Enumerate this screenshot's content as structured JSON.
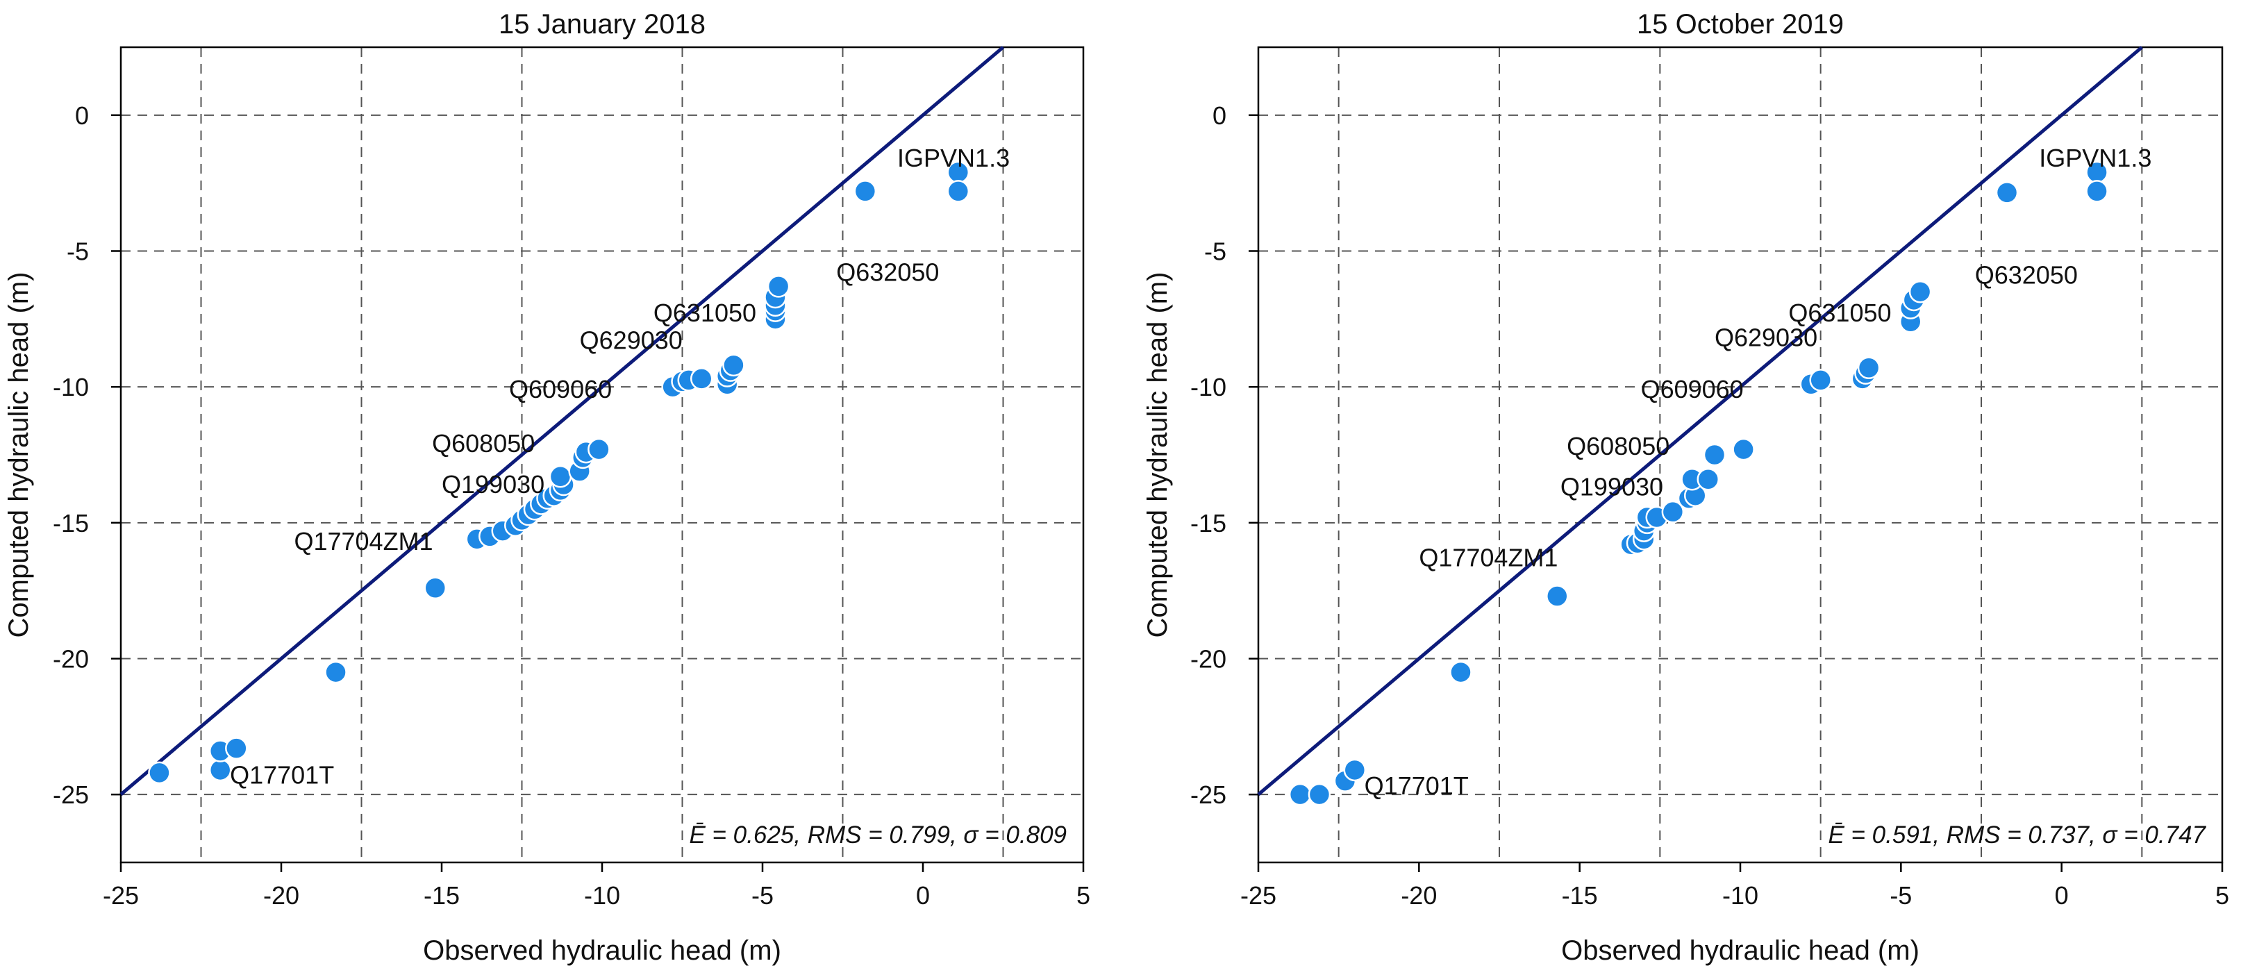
{
  "colors": {
    "point": "#1e88e5",
    "line": "#0d1b7a",
    "grid": "#555555",
    "axis": "#000000"
  },
  "chart_data": [
    {
      "type": "scatter",
      "title": "15 January 2018",
      "xlabel": "Observed hydraulic head (m)",
      "ylabel": "Computed hydraulic head (m)",
      "xlim": [
        -25,
        5
      ],
      "ylim": [
        -27.5,
        2.5
      ],
      "xticks": [
        -25,
        -20,
        -15,
        -10,
        -5,
        0,
        5
      ],
      "yticks": [
        0,
        -5,
        -10,
        -15,
        -20,
        -25
      ],
      "xgrid": [
        -22.5,
        -17.5,
        -12.5,
        -7.5,
        -2.5,
        2.5
      ],
      "ygrid": [
        0,
        -5,
        -10,
        -15,
        -20,
        -25
      ],
      "reference_line": "1:1",
      "stats": "Ē = 0.625, RMS = 0.799, σ = 0.809",
      "points": [
        {
          "x": -23.8,
          "y": -24.2
        },
        {
          "x": -21.9,
          "y": -24.1
        },
        {
          "x": -21.9,
          "y": -23.4
        },
        {
          "x": -21.4,
          "y": -23.3
        },
        {
          "x": -18.3,
          "y": -20.5
        },
        {
          "x": -15.2,
          "y": -17.4
        },
        {
          "x": -13.9,
          "y": -15.6
        },
        {
          "x": -13.5,
          "y": -15.5
        },
        {
          "x": -13.1,
          "y": -15.3
        },
        {
          "x": -12.7,
          "y": -15.1
        },
        {
          "x": -12.5,
          "y": -14.9
        },
        {
          "x": -12.3,
          "y": -14.7
        },
        {
          "x": -12.1,
          "y": -14.5
        },
        {
          "x": -11.9,
          "y": -14.3
        },
        {
          "x": -11.7,
          "y": -14.1
        },
        {
          "x": -11.5,
          "y": -14.0
        },
        {
          "x": -11.3,
          "y": -13.8
        },
        {
          "x": -11.2,
          "y": -13.6
        },
        {
          "x": -11.3,
          "y": -13.3
        },
        {
          "x": -10.7,
          "y": -13.1
        },
        {
          "x": -10.6,
          "y": -12.6
        },
        {
          "x": -10.5,
          "y": -12.4
        },
        {
          "x": -10.1,
          "y": -12.3
        },
        {
          "x": -7.8,
          "y": -10.0
        },
        {
          "x": -7.5,
          "y": -9.8
        },
        {
          "x": -7.3,
          "y": -9.75
        },
        {
          "x": -6.9,
          "y": -9.7
        },
        {
          "x": -6.1,
          "y": -9.9
        },
        {
          "x": -6.1,
          "y": -9.6
        },
        {
          "x": -6.0,
          "y": -9.4
        },
        {
          "x": -5.9,
          "y": -9.2
        },
        {
          "x": -4.6,
          "y": -7.5
        },
        {
          "x": -4.6,
          "y": -7.2
        },
        {
          "x": -4.6,
          "y": -7.0
        },
        {
          "x": -4.6,
          "y": -6.7
        },
        {
          "x": -4.5,
          "y": -6.3
        },
        {
          "x": -1.8,
          "y": -2.8
        },
        {
          "x": 1.1,
          "y": -2.1
        },
        {
          "x": 1.1,
          "y": -2.8
        }
      ],
      "labels": [
        {
          "text": "IGPVN1.3",
          "x": -0.8,
          "y": -1.9
        },
        {
          "text": "Q632050",
          "x": -2.7,
          "y": -6.1
        },
        {
          "text": "Q631050",
          "x": -8.4,
          "y": -7.6
        },
        {
          "text": "Q629030",
          "x": -10.7,
          "y": -8.6
        },
        {
          "text": "Q609060",
          "x": -12.9,
          "y": -10.4
        },
        {
          "text": "Q608050",
          "x": -15.3,
          "y": -12.4
        },
        {
          "text": "Q199030",
          "x": -15.0,
          "y": -13.9
        },
        {
          "text": "Q17704ZM1",
          "x": -19.6,
          "y": -16.0
        },
        {
          "text": "Q17701T",
          "x": -21.6,
          "y": -24.6
        }
      ]
    },
    {
      "type": "scatter",
      "title": "15 October 2019",
      "xlabel": "Observed hydraulic head (m)",
      "ylabel": "Computed hydraulic head (m)",
      "xlim": [
        -25,
        5
      ],
      "ylim": [
        -27.5,
        2.5
      ],
      "xticks": [
        -25,
        -20,
        -15,
        -10,
        -5,
        0,
        5
      ],
      "yticks": [
        0,
        -5,
        -10,
        -15,
        -20,
        -25
      ],
      "xgrid": [
        -22.5,
        -17.5,
        -12.5,
        -7.5,
        -2.5,
        2.5
      ],
      "ygrid": [
        0,
        -5,
        -10,
        -15,
        -20,
        -25
      ],
      "reference_line": "1:1",
      "stats": "Ē = 0.591, RMS = 0.737, σ = 0.747",
      "points": [
        {
          "x": -23.7,
          "y": -25.0
        },
        {
          "x": -23.1,
          "y": -25.0
        },
        {
          "x": -22.3,
          "y": -24.5
        },
        {
          "x": -22.0,
          "y": -24.1
        },
        {
          "x": -18.7,
          "y": -20.5
        },
        {
          "x": -15.7,
          "y": -17.7
        },
        {
          "x": -13.4,
          "y": -15.8
        },
        {
          "x": -13.2,
          "y": -15.75
        },
        {
          "x": -13.0,
          "y": -15.6
        },
        {
          "x": -13.0,
          "y": -15.3
        },
        {
          "x": -12.9,
          "y": -15.0
        },
        {
          "x": -12.9,
          "y": -14.8
        },
        {
          "x": -12.6,
          "y": -14.8
        },
        {
          "x": -12.1,
          "y": -14.6
        },
        {
          "x": -11.6,
          "y": -14.1
        },
        {
          "x": -11.4,
          "y": -14.0
        },
        {
          "x": -11.5,
          "y": -13.4
        },
        {
          "x": -11.0,
          "y": -13.4
        },
        {
          "x": -10.8,
          "y": -12.5
        },
        {
          "x": -9.9,
          "y": -12.3
        },
        {
          "x": -7.8,
          "y": -9.9
        },
        {
          "x": -7.5,
          "y": -9.75
        },
        {
          "x": -6.2,
          "y": -9.7
        },
        {
          "x": -6.1,
          "y": -9.5
        },
        {
          "x": -6.0,
          "y": -9.3
        },
        {
          "x": -4.7,
          "y": -7.6
        },
        {
          "x": -4.7,
          "y": -7.1
        },
        {
          "x": -4.6,
          "y": -6.8
        },
        {
          "x": -4.4,
          "y": -6.5
        },
        {
          "x": -1.7,
          "y": -2.85
        },
        {
          "x": 1.1,
          "y": -2.1
        },
        {
          "x": 1.1,
          "y": -2.8
        }
      ],
      "labels": [
        {
          "text": "IGPVN1.3",
          "x": -0.7,
          "y": -1.9
        },
        {
          "text": "Q632050",
          "x": -2.7,
          "y": -6.2
        },
        {
          "text": "Q631050",
          "x": -8.5,
          "y": -7.6
        },
        {
          "text": "Q629030",
          "x": -10.8,
          "y": -8.5
        },
        {
          "text": "Q609060",
          "x": -13.1,
          "y": -10.4
        },
        {
          "text": "Q608050",
          "x": -15.4,
          "y": -12.5
        },
        {
          "text": "Q199030",
          "x": -15.6,
          "y": -14.0
        },
        {
          "text": "Q17704ZM1",
          "x": -20.0,
          "y": -16.6
        },
        {
          "text": "Q17701T",
          "x": -21.7,
          "y": -25.0
        }
      ]
    }
  ]
}
